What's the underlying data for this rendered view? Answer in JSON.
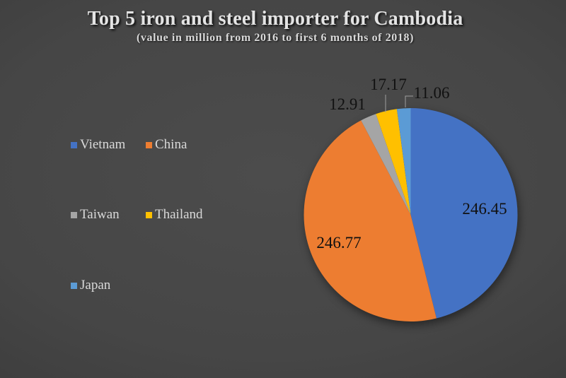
{
  "title": {
    "text": "Top 5 iron and steel importer for Cambodia",
    "subtitle": "(value in million from 2016 to first 6 months of 2018)"
  },
  "legend": {
    "position": "left",
    "items": [
      {
        "label": "Vietnam",
        "color": "#4472C4"
      },
      {
        "label": "China",
        "color": "#ED7D31"
      },
      {
        "label": "Taiwan",
        "color": "#A5A5A5"
      },
      {
        "label": "Thailand",
        "color": "#FFC000"
      },
      {
        "label": "Japan",
        "color": "#5B9BD5"
      }
    ]
  },
  "chart_data": {
    "type": "pie",
    "title": "Top 5 iron and steel importer for Cambodia",
    "subtitle": "(value in million from 2016 to first 6 months of 2018)",
    "categories": [
      "Vietnam",
      "China",
      "Taiwan",
      "Thailand",
      "Japan"
    ],
    "values": [
      246.45,
      246.77,
      12.91,
      17.17,
      11.06
    ],
    "colors": [
      "#4472C4",
      "#ED7D31",
      "#A5A5A5",
      "#FFC000",
      "#5B9BD5"
    ],
    "data_labels": [
      "246.45",
      "246.77",
      "12.91",
      "17.17",
      "11.06"
    ],
    "start_angle_deg": 0,
    "direction": "clockwise",
    "legend_position": "left"
  },
  "style": {
    "background_center": "#4c4c4c",
    "background_edge": "#2a2a2a",
    "title_color": "#e4e4e4",
    "legend_text_color": "#d9d9d9",
    "data_label_color": "#111111",
    "leader_line_color": "#9e9e9e"
  }
}
